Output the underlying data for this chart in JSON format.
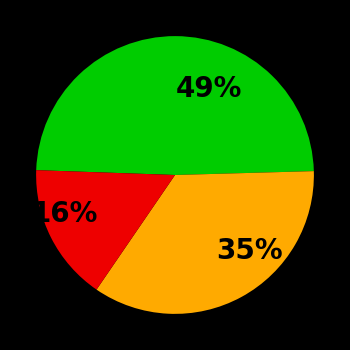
{
  "slices": [
    49,
    35,
    16
  ],
  "colors": [
    "#00cc00",
    "#ffaa00",
    "#ee0000"
  ],
  "labels": [
    "49%",
    "35%",
    "16%"
  ],
  "background_color": "#000000",
  "startangle": 178,
  "figsize": [
    3.5,
    3.5
  ],
  "dpi": 100,
  "label_fontsize": 20,
  "label_fontweight": "bold"
}
